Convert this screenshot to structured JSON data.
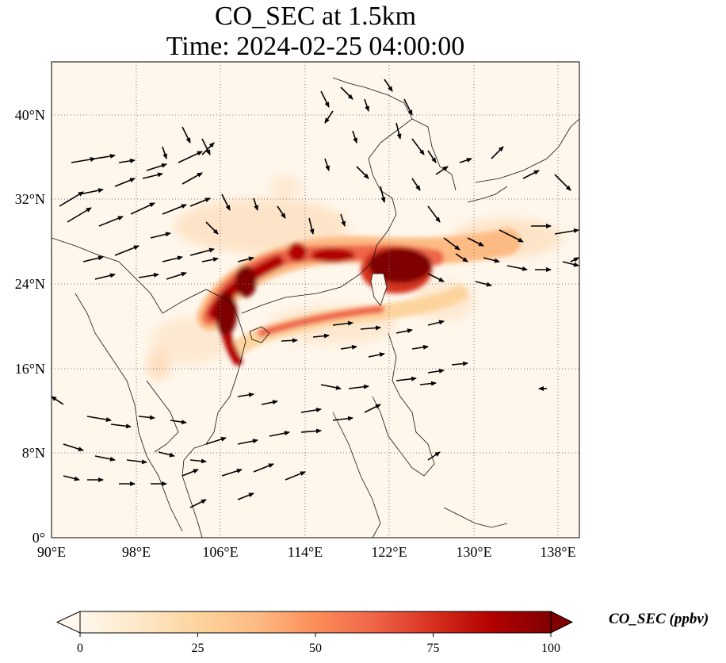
{
  "title": {
    "line1": "CO_SEC at 1.5km",
    "line2": "Time: 2024-02-25 04:00:00"
  },
  "map": {
    "lon_range": [
      90,
      140
    ],
    "lat_range": [
      0,
      45
    ],
    "lon_ticks": [
      {
        "value": 90,
        "label": "90°E"
      },
      {
        "value": 98,
        "label": "98°E"
      },
      {
        "value": 106,
        "label": "106°E"
      },
      {
        "value": 114,
        "label": "114°E"
      },
      {
        "value": 122,
        "label": "122°E"
      },
      {
        "value": 130,
        "label": "130°E"
      },
      {
        "value": 138,
        "label": "138°E"
      }
    ],
    "lat_ticks": [
      {
        "value": 0,
        "label": "0°"
      },
      {
        "value": 8,
        "label": "8°N"
      },
      {
        "value": 16,
        "label": "16°N"
      },
      {
        "value": 24,
        "label": "24°N"
      },
      {
        "value": 32,
        "label": "32°N"
      },
      {
        "value": 40,
        "label": "40°N"
      }
    ],
    "gridlines": "dotted",
    "plume_color_max": "#7f0000",
    "plume_color_mid": "#d7301f",
    "plume_color_low": "#fdd49e",
    "background_color": "#fff7ec"
  },
  "colorbar": {
    "label": "CO_SEC (ppbv)",
    "min": 0,
    "max": 100,
    "extend": "both",
    "ticks": [
      {
        "value": 0,
        "label": "0"
      },
      {
        "value": 25,
        "label": "25"
      },
      {
        "value": 50,
        "label": "50"
      },
      {
        "value": 75,
        "label": "75"
      },
      {
        "value": 100,
        "label": "100"
      }
    ],
    "colors": [
      "#fff7ec",
      "#fee8c8",
      "#fdd49e",
      "#fdbb84",
      "#fc8d59",
      "#ef6548",
      "#d7301f",
      "#b30000",
      "#7f0000"
    ]
  }
}
